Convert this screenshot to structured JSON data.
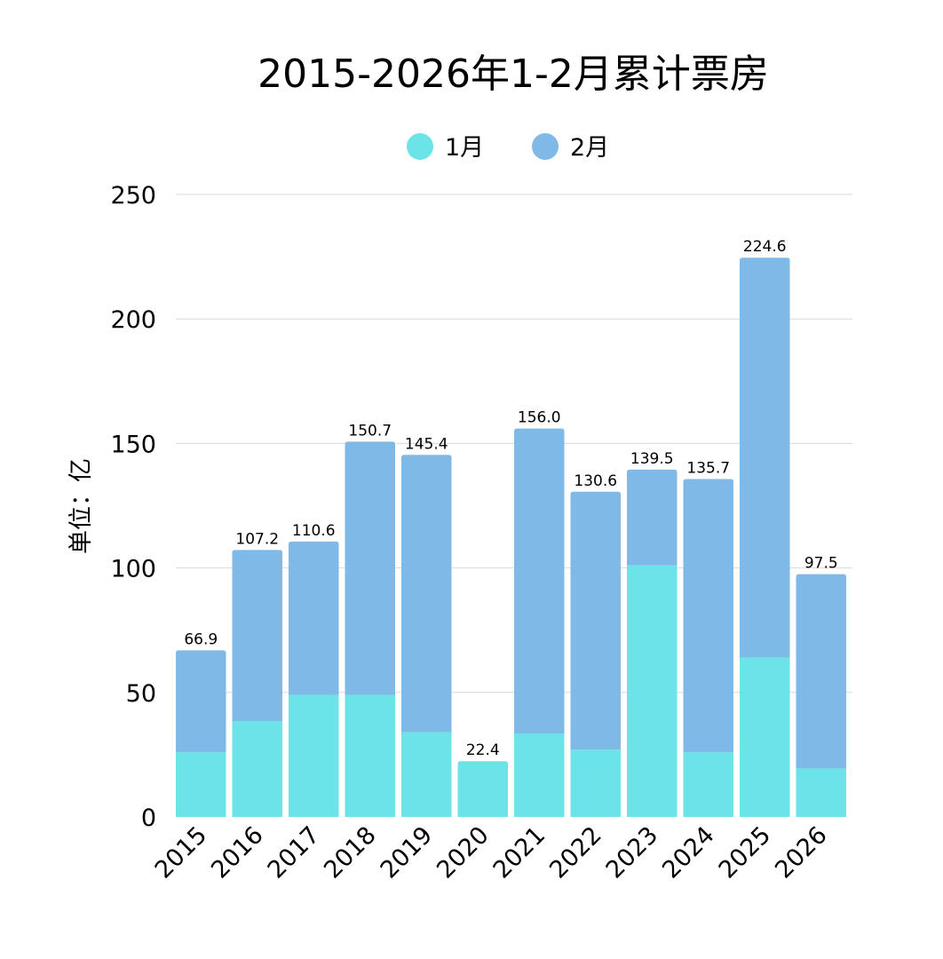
{
  "chart_data": {
    "type": "bar",
    "stacked": true,
    "title": "2015-2026年1-2月累计票房",
    "ylabel": "单位：亿",
    "xlabel": "",
    "ylim": [
      0,
      250
    ],
    "yticks": [
      0,
      50,
      100,
      150,
      200,
      250
    ],
    "grid": true,
    "legend_position": "top-center",
    "categories": [
      "2015",
      "2016",
      "2017",
      "2018",
      "2019",
      "2020",
      "2021",
      "2022",
      "2023",
      "2024",
      "2025",
      "2026"
    ],
    "series": [
      {
        "name": "1月",
        "color": "#6ce3e6",
        "values": [
          26.0,
          38.5,
          49.0,
          49.0,
          34.0,
          22.4,
          33.5,
          27.0,
          101.0,
          26.0,
          64.0,
          19.5
        ]
      },
      {
        "name": "2月",
        "color": "#7fb9e8",
        "values": [
          40.9,
          68.7,
          61.6,
          101.7,
          111.4,
          0,
          122.5,
          103.6,
          38.5,
          109.7,
          160.6,
          78.0
        ]
      }
    ],
    "totals": [
      "66.9",
      "107.2",
      "110.6",
      "150.7",
      "145.4",
      "22.4",
      "156.0",
      "130.6",
      "139.5",
      "135.7",
      "224.6",
      "97.5"
    ]
  }
}
